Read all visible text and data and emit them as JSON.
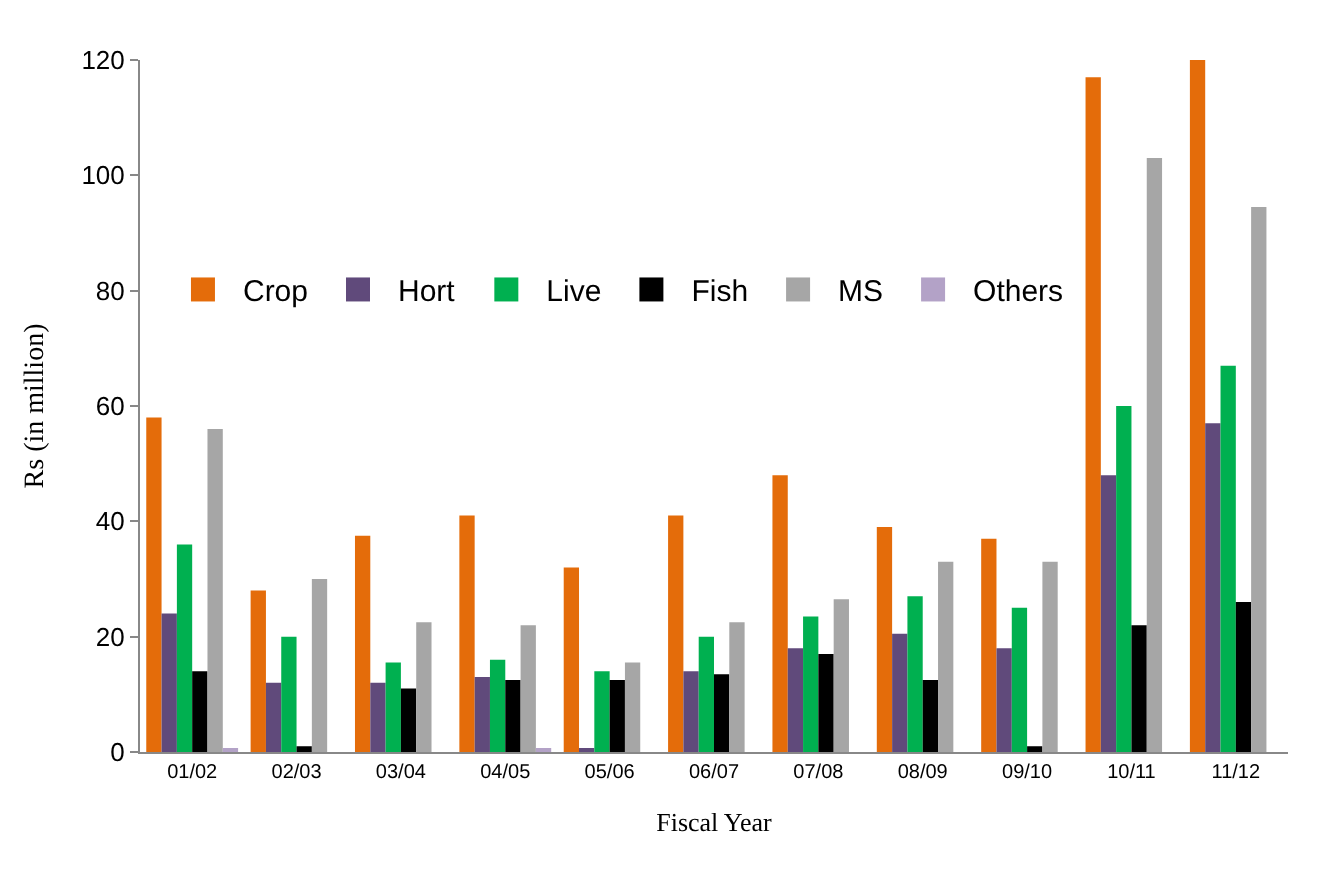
{
  "chart_data": {
    "type": "bar",
    "xlabel": "Fiscal Year",
    "ylabel": "Rs (in million)",
    "categories": [
      "01/02",
      "02/03",
      "03/04",
      "04/05",
      "05/06",
      "06/07",
      "07/08",
      "08/09",
      "09/10",
      "10/11",
      "11/12"
    ],
    "series": [
      {
        "name": "Crop",
        "color": "#e46c0a",
        "values": [
          58,
          28,
          37.5,
          41,
          32,
          41,
          48,
          39,
          37,
          117,
          120
        ]
      },
      {
        "name": "Hort",
        "color": "#604a7b",
        "values": [
          24,
          12,
          12,
          13,
          0.5,
          14,
          18,
          20.5,
          18,
          48,
          57
        ]
      },
      {
        "name": "Live",
        "color": "#00b050",
        "values": [
          36,
          20,
          15.5,
          16,
          14,
          20,
          23.5,
          27,
          25,
          60,
          67
        ]
      },
      {
        "name": "Fish",
        "color": "#000000",
        "values": [
          14,
          1,
          11,
          12.5,
          12.5,
          13.5,
          17,
          12.5,
          1,
          22,
          26
        ]
      },
      {
        "name": "MS",
        "color": "#a6a6a6",
        "values": [
          56,
          30,
          22.5,
          22,
          15.5,
          22.5,
          26.5,
          33,
          33,
          103,
          94.5
        ]
      },
      {
        "name": "Others",
        "color": "#b3a2c7",
        "values": [
          0.5,
          0,
          0,
          0.5,
          0,
          0,
          0,
          0,
          0,
          0,
          0
        ]
      }
    ],
    "ylim": [
      0,
      120
    ],
    "yticks": [
      0,
      20,
      40,
      60,
      80,
      100,
      120
    ],
    "legend": "top left"
  }
}
